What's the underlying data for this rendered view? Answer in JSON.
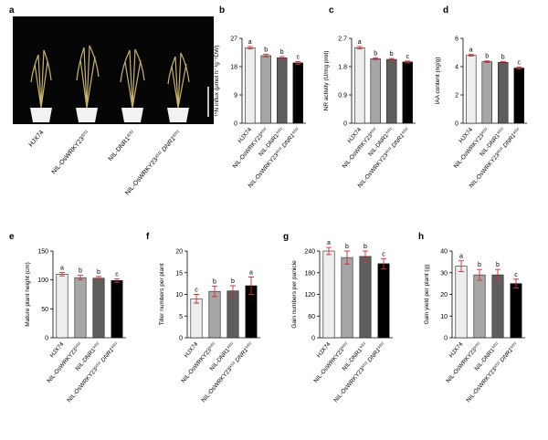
{
  "chart_data": [
    {
      "type": "image",
      "panel": "a",
      "categories": [
        [
          "HJX74"
        ],
        [
          "NIL-OsWRKY23",
          "9311"
        ],
        [
          "NIL-DNR1",
          "9311"
        ],
        [
          "NIL-OsWRKY23",
          "9311",
          " DNR1",
          "9311"
        ]
      ]
    },
    {
      "type": "bar",
      "panel": "b",
      "ylabel": "¹⁵N influx (μmol h⁻¹g⁻¹DW)",
      "categories": [
        [
          "HJX74"
        ],
        [
          "NIL-OsWRKY23",
          "9311"
        ],
        [
          "NIL-DNR1",
          "9311"
        ],
        [
          "NIL-OsWRKY23",
          "9311",
          " DNR1",
          "9311"
        ]
      ],
      "values": [
        24,
        21.5,
        20.8,
        19.2
      ],
      "errors": [
        0.4,
        0.4,
        0.4,
        0.4
      ],
      "letters": [
        "a",
        "b",
        "b",
        "c"
      ],
      "colors": [
        "#eeeeee",
        "#a6a6a6",
        "#5e5e5e",
        "#000000"
      ],
      "ylim": [
        0,
        27
      ],
      "yticks": [
        0,
        9,
        18,
        27
      ]
    },
    {
      "type": "bar",
      "panel": "c",
      "ylabel": "NR activity (U/mg prot)",
      "categories": [
        [
          "HJX74"
        ],
        [
          "NIL-OsWRKY23",
          "9311"
        ],
        [
          "NIL-DNR1",
          "9311"
        ],
        [
          "NIL-OsWRKY23",
          "9311",
          " DNR1",
          "9311"
        ]
      ],
      "values": [
        2.4,
        2.05,
        2.03,
        1.95
      ],
      "errors": [
        0.04,
        0.03,
        0.03,
        0.03
      ],
      "letters": [
        "a",
        "b",
        "b",
        "c"
      ],
      "colors": [
        "#eeeeee",
        "#a6a6a6",
        "#5e5e5e",
        "#000000"
      ],
      "ylim": [
        0,
        2.7
      ],
      "yticks": [
        0,
        0.9,
        1.8,
        2.7
      ]
    },
    {
      "type": "bar",
      "panel": "d",
      "ylabel": "IAA content (ng/g)",
      "categories": [
        [
          "HJX74"
        ],
        [
          "NIL-OsWRKY23",
          "9311"
        ],
        [
          "NIL-DNR1",
          "9311"
        ],
        [
          "NIL-OsWRKY23",
          "9311",
          " DNR1",
          "9311"
        ]
      ],
      "values": [
        4.8,
        4.35,
        4.3,
        3.9
      ],
      "errors": [
        0.06,
        0.06,
        0.06,
        0.08
      ],
      "letters": [
        "a",
        "b",
        "b",
        "c"
      ],
      "colors": [
        "#eeeeee",
        "#a6a6a6",
        "#5e5e5e",
        "#000000"
      ],
      "ylim": [
        0,
        6
      ],
      "yticks": [
        0,
        2,
        4,
        6
      ]
    },
    {
      "type": "bar",
      "panel": "e",
      "ylabel": "Mature plant height (cm)",
      "categories": [
        [
          "HJX74"
        ],
        [
          "NIL-OsWRKY23",
          "9311"
        ],
        [
          "NIL-DNR1",
          "9311"
        ],
        [
          "NIL-OsWRKY23",
          "9311",
          " DNR1",
          "9311"
        ]
      ],
      "values": [
        110,
        104,
        103,
        99
      ],
      "errors": [
        3,
        4,
        3,
        3
      ],
      "letters": [
        "a",
        "b",
        "b",
        "c"
      ],
      "colors": [
        "#eeeeee",
        "#a6a6a6",
        "#5e5e5e",
        "#000000"
      ],
      "ylim": [
        0,
        150
      ],
      "yticks": [
        0,
        50,
        100,
        150
      ]
    },
    {
      "type": "bar",
      "panel": "f",
      "ylabel": "Tiller numbers per plant",
      "categories": [
        [
          "HJX74"
        ],
        [
          "NIL-OsWRKY23",
          "9311"
        ],
        [
          "NIL-DNR1",
          "9311"
        ],
        [
          "NIL-OsWRKY23",
          "9311",
          " DNR1",
          "9311"
        ]
      ],
      "values": [
        9,
        10.7,
        10.8,
        12
      ],
      "errors": [
        1,
        1.2,
        1.2,
        2
      ],
      "letters": [
        "c",
        "b",
        "b",
        "a"
      ],
      "colors": [
        "#eeeeee",
        "#a6a6a6",
        "#5e5e5e",
        "#000000"
      ],
      "ylim": [
        0,
        20
      ],
      "yticks": [
        0,
        5,
        10,
        15,
        20
      ]
    },
    {
      "type": "bar",
      "panel": "g",
      "ylabel": "Gain numbers per panicle",
      "categories": [
        [
          "HJX74"
        ],
        [
          "NIL-OsWRKY23",
          "9311"
        ],
        [
          "NIL-DNR1",
          "9311"
        ],
        [
          "NIL-OsWRKY23",
          "9311",
          " DNR1",
          "9311"
        ]
      ],
      "values": [
        240,
        222,
        225,
        205
      ],
      "errors": [
        10,
        18,
        15,
        14
      ],
      "letters": [
        "a",
        "b",
        "b",
        "c"
      ],
      "colors": [
        "#eeeeee",
        "#a6a6a6",
        "#5e5e5e",
        "#000000"
      ],
      "ylim": [
        0,
        240
      ],
      "yticks": [
        0,
        60,
        120,
        180,
        240
      ]
    },
    {
      "type": "bar",
      "panel": "h",
      "ylabel": "Gain yield per plant (g)",
      "categories": [
        [
          "HJX74"
        ],
        [
          "NIL-OsWRKY23",
          "9311"
        ],
        [
          "NIL-DNR1",
          "9311"
        ],
        [
          "NIL-OsWRKY23",
          "9311",
          " DNR1",
          "9311"
        ]
      ],
      "values": [
        33,
        29,
        29,
        25
      ],
      "errors": [
        2.5,
        2.5,
        2.5,
        2
      ],
      "letters": [
        "a",
        "b",
        "b",
        "c"
      ],
      "colors": [
        "#eeeeee",
        "#a6a6a6",
        "#5e5e5e",
        "#000000"
      ],
      "ylim": [
        0,
        40
      ],
      "yticks": [
        0,
        10,
        20,
        30,
        40
      ]
    }
  ]
}
